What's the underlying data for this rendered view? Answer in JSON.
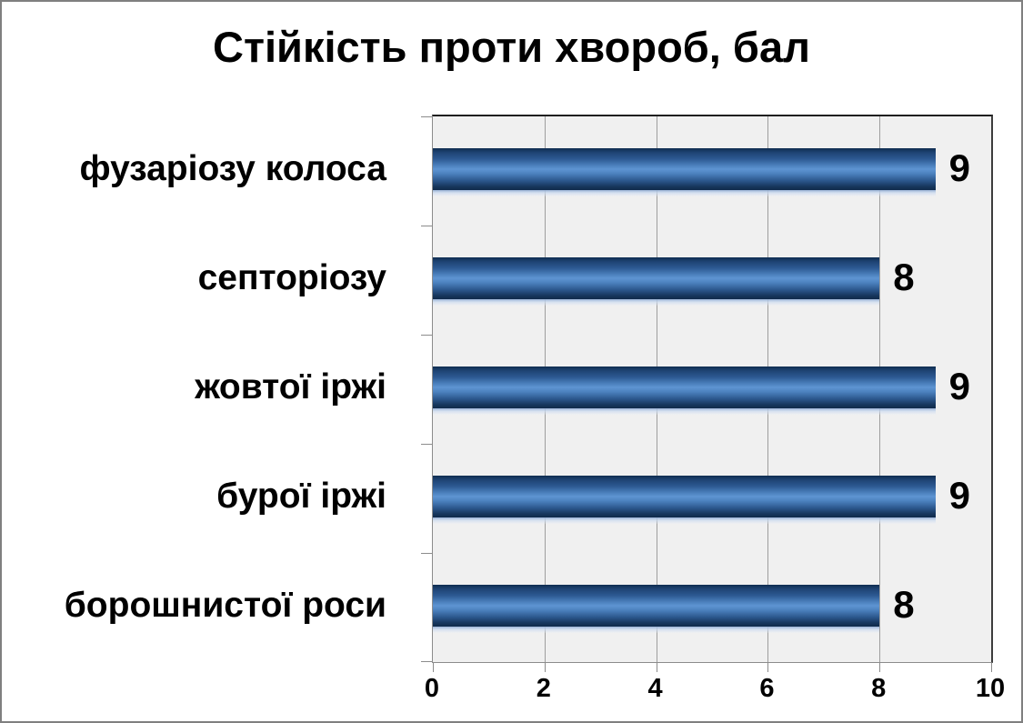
{
  "title": "Стійкість проти хвороб, бал",
  "colors": {
    "bar_highlight": "#5e94d2",
    "bar_dark": "#17375e",
    "plot_bg": "#f0f0f0",
    "grid": "#9e9e9e",
    "frame": "#7f7f7f",
    "text": "#000000"
  },
  "chart_data": {
    "type": "bar",
    "orientation": "horizontal",
    "title": "Стійкість проти хвороб, бал",
    "categories": [
      "фузаріозу колоса",
      "септоріозу",
      "жовтої іржі",
      "бурої іржі",
      "борошнистої роси"
    ],
    "values": [
      9,
      8,
      9,
      9,
      8
    ],
    "data_labels": [
      "9",
      "8",
      "9",
      "9",
      "8"
    ],
    "xlabel": "",
    "ylabel": "",
    "xlim": [
      0,
      10
    ],
    "xticks": [
      "0",
      "2",
      "4",
      "6",
      "8",
      "10"
    ],
    "grid": true,
    "gridline_step": 2,
    "legend": false
  }
}
